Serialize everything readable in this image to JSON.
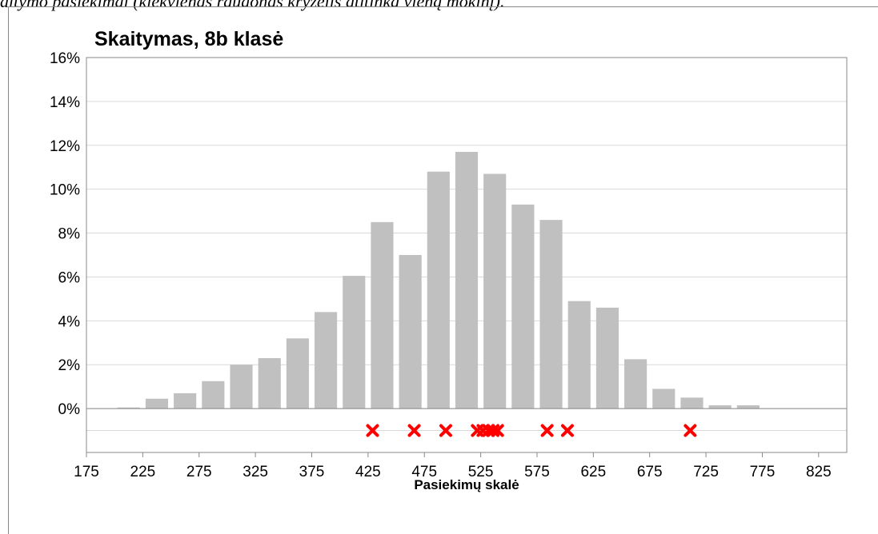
{
  "caption": "altymo pasiekimai (kiekvienas raudonas kryželis atitinka vieną mokinį).",
  "chart_data": {
    "type": "histogram",
    "title": "Skaitymas, 8b klasė",
    "x_label": "Pasiekimų skalė",
    "bins": [
      200,
      225,
      250,
      275,
      300,
      325,
      350,
      375,
      400,
      425,
      450,
      475,
      500,
      525,
      550,
      575,
      600,
      625,
      650,
      675,
      700,
      725,
      750,
      775
    ],
    "values": [
      0.05,
      0.45,
      0.7,
      1.25,
      2.0,
      2.3,
      3.2,
      4.4,
      6.05,
      8.5,
      7.0,
      10.8,
      11.7,
      10.7,
      9.3,
      8.6,
      4.9,
      4.6,
      2.25,
      0.9,
      0.5,
      0.15,
      0.15
    ],
    "color": "#c0c0c0",
    "markers": {
      "type": "scatter",
      "marker": "x",
      "color": "#ff0000",
      "x": [
        429,
        466,
        494,
        522,
        527,
        532,
        536,
        540,
        584,
        602,
        711
      ],
      "y": [
        -1,
        -1,
        -1,
        -1,
        -1,
        -1,
        -1,
        -1,
        -1,
        -1,
        -1
      ]
    },
    "xlim": [
      175,
      850
    ],
    "xticks": [
      175,
      225,
      275,
      325,
      375,
      425,
      475,
      525,
      575,
      625,
      675,
      725,
      775,
      825
    ],
    "ylim": [
      -2,
      16
    ],
    "yticks": [
      {
        "value": 0,
        "label": "0%"
      },
      {
        "value": 2,
        "label": "2%"
      },
      {
        "value": 4,
        "label": "4%"
      },
      {
        "value": 6,
        "label": "6%"
      },
      {
        "value": 8,
        "label": "8%"
      },
      {
        "value": 10,
        "label": "10%"
      },
      {
        "value": 12,
        "label": "12%"
      },
      {
        "value": 14,
        "label": "14%"
      },
      {
        "value": 16,
        "label": "16%"
      }
    ],
    "extra_gridlines": [
      -1
    ],
    "grid": true
  }
}
